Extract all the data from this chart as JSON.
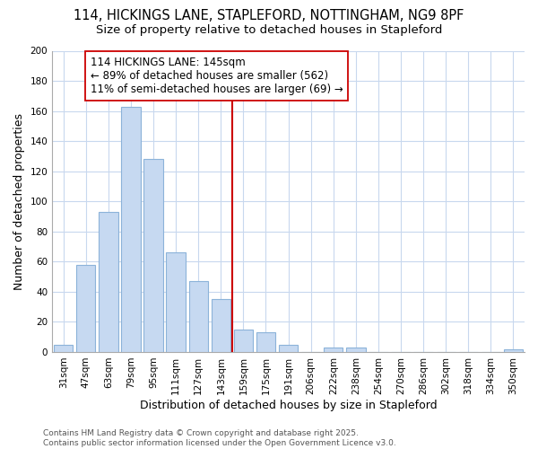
{
  "title_line1": "114, HICKINGS LANE, STAPLEFORD, NOTTINGHAM, NG9 8PF",
  "title_line2": "Size of property relative to detached houses in Stapleford",
  "xlabel": "Distribution of detached houses by size in Stapleford",
  "ylabel": "Number of detached properties",
  "categories": [
    "31sqm",
    "47sqm",
    "63sqm",
    "79sqm",
    "95sqm",
    "111sqm",
    "127sqm",
    "143sqm",
    "159sqm",
    "175sqm",
    "191sqm",
    "206sqm",
    "222sqm",
    "238sqm",
    "254sqm",
    "270sqm",
    "286sqm",
    "302sqm",
    "318sqm",
    "334sqm",
    "350sqm"
  ],
  "values": [
    5,
    58,
    93,
    163,
    128,
    66,
    47,
    35,
    15,
    13,
    5,
    0,
    3,
    3,
    0,
    0,
    0,
    0,
    0,
    0,
    2
  ],
  "bar_color": "#c6d9f1",
  "bar_edge_color": "#8cb3d9",
  "vline_color": "#cc0000",
  "annotation_text": "114 HICKINGS LANE: 145sqm\n← 89% of detached houses are smaller (562)\n11% of semi-detached houses are larger (69) →",
  "annotation_box_color": "#cc0000",
  "ylim": [
    0,
    200
  ],
  "yticks": [
    0,
    20,
    40,
    60,
    80,
    100,
    120,
    140,
    160,
    180,
    200
  ],
  "plot_bg_color": "#ffffff",
  "fig_bg_color": "#ffffff",
  "grid_color": "#c8d8ee",
  "footer": "Contains HM Land Registry data © Crown copyright and database right 2025.\nContains public sector information licensed under the Open Government Licence v3.0.",
  "title_fontsize": 10.5,
  "subtitle_fontsize": 9.5,
  "axis_label_fontsize": 9,
  "tick_fontsize": 7.5,
  "annotation_fontsize": 8.5,
  "footer_fontsize": 6.5,
  "vline_x_index": 7
}
